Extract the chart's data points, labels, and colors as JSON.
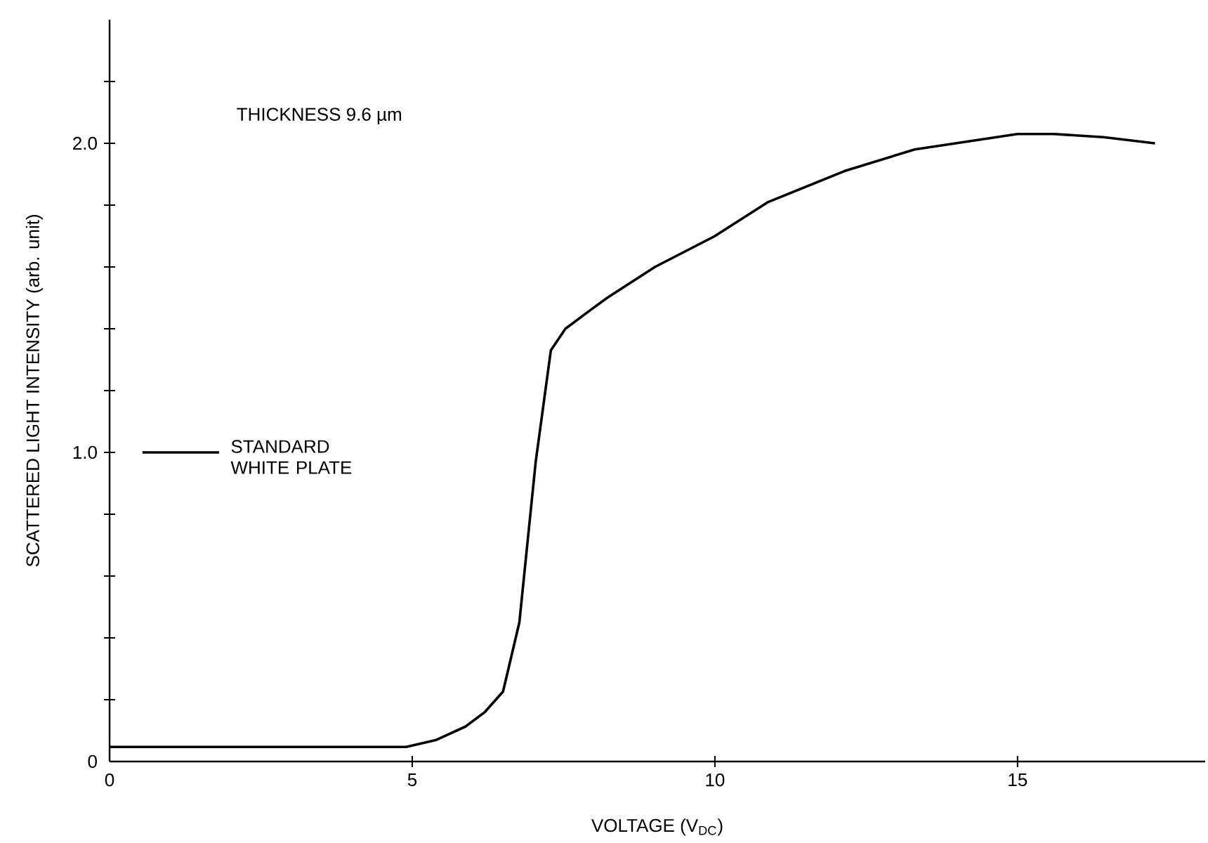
{
  "chart_data": {
    "type": "line",
    "xlabel": "VOLTAGE (V$_{DC}$)",
    "ylabel": "SCATTERED LIGHT INTENSITY (arb. unit)",
    "annotations": [
      "THICKNESS 9.6 µm"
    ],
    "xlim": [
      0,
      18.1
    ],
    "ylim": [
      0,
      2.4
    ],
    "xticks": [
      0,
      5,
      10,
      15
    ],
    "yticks": [
      {
        "value": 0,
        "label": "0"
      },
      {
        "value": 0.2,
        "label": null
      },
      {
        "value": 0.4,
        "label": null
      },
      {
        "value": 0.6,
        "label": null
      },
      {
        "value": 0.8,
        "label": null
      },
      {
        "value": 1.0,
        "label": "1.0"
      },
      {
        "value": 1.2,
        "label": null
      },
      {
        "value": 1.4,
        "label": null
      },
      {
        "value": 1.6,
        "label": null
      },
      {
        "value": 1.8,
        "label": null
      },
      {
        "value": 2.0,
        "label": "2.0"
      },
      {
        "value": 2.2,
        "label": null
      }
    ],
    "ref_lines": [
      {
        "axis": "y",
        "value": 1.0,
        "label": "STANDARD WHITE PLATE",
        "color": "#000000"
      }
    ],
    "grid": false,
    "marker": "none",
    "line_style": "solid",
    "series": [
      {
        "color": "#000000",
        "x": [
          0,
          2,
          4,
          4.9,
          5.4,
          5.88,
          6.2,
          6.5,
          6.77,
          7.04,
          7.29,
          7.53,
          7.94,
          8.22,
          9.01,
          10.0,
          10.88,
          12.14,
          13.3,
          15.0,
          15.6,
          16.42,
          17.27
        ],
        "values": [
          0.047,
          0.047,
          0.047,
          0.047,
          0.07,
          0.113,
          0.16,
          0.226,
          0.45,
          0.97,
          1.33,
          1.4,
          1.46,
          1.5,
          1.6,
          1.7,
          1.81,
          1.91,
          1.98,
          2.03,
          2.03,
          2.02,
          2.0
        ]
      }
    ]
  }
}
